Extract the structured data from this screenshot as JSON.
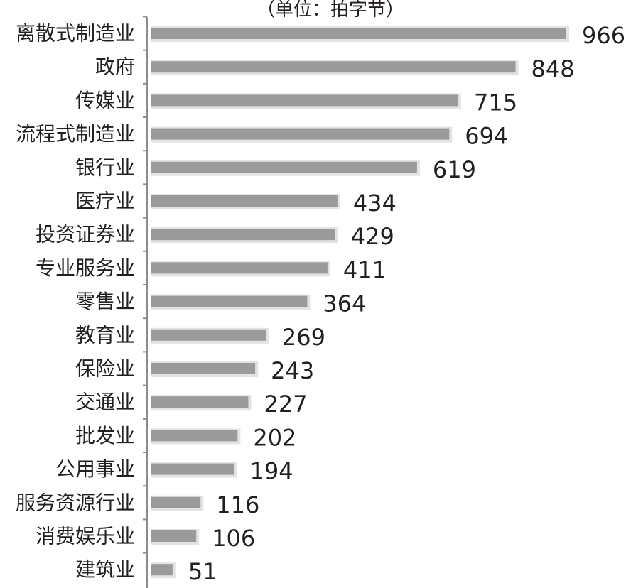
{
  "chart_data": {
    "type": "bar",
    "orientation": "horizontal",
    "unit_label": "（单位：拍字节）",
    "categories": [
      "离散式制造业",
      "政府",
      "传媒业",
      "流程式制造业",
      "银行业",
      "医疗业",
      "投资证券业",
      "专业服务业",
      "零售业",
      "教育业",
      "保险业",
      "交通业",
      "批发业",
      "公用事业",
      "服务资源行业",
      "消费娱乐业",
      "建筑业"
    ],
    "values": [
      966,
      848,
      715,
      694,
      619,
      434,
      429,
      411,
      364,
      269,
      243,
      227,
      202,
      194,
      116,
      106,
      51
    ],
    "xlim": [
      0,
      966
    ],
    "grid": false,
    "legend": "none",
    "colors": {
      "bar": "#9a9a9a",
      "bar_shadow": "#e3e3e3",
      "axis": "#8c8c8c",
      "text": "#231f20"
    }
  }
}
